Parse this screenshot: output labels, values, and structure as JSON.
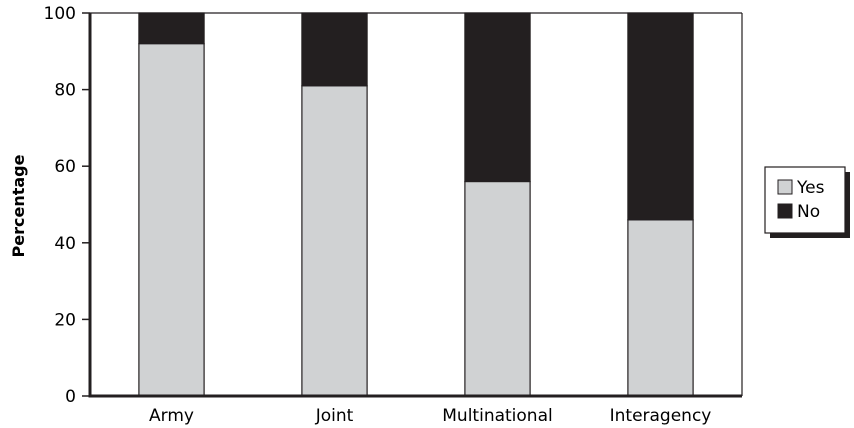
{
  "chart_data": {
    "type": "bar",
    "stacked": true,
    "categories": [
      "Army",
      "Joint",
      "Multinational",
      "Interagency"
    ],
    "series": [
      {
        "name": "Yes",
        "values": [
          92,
          81,
          56,
          46
        ],
        "color": "#d0d2d3"
      },
      {
        "name": "No",
        "values": [
          8,
          19,
          44,
          54
        ],
        "color": "#231f20"
      }
    ],
    "title": "",
    "xlabel": "",
    "ylabel": "Percentage",
    "ylim": [
      0,
      100
    ],
    "yticks": [
      0,
      20,
      40,
      60,
      80,
      100
    ],
    "grid": false,
    "legend_position": "right"
  }
}
